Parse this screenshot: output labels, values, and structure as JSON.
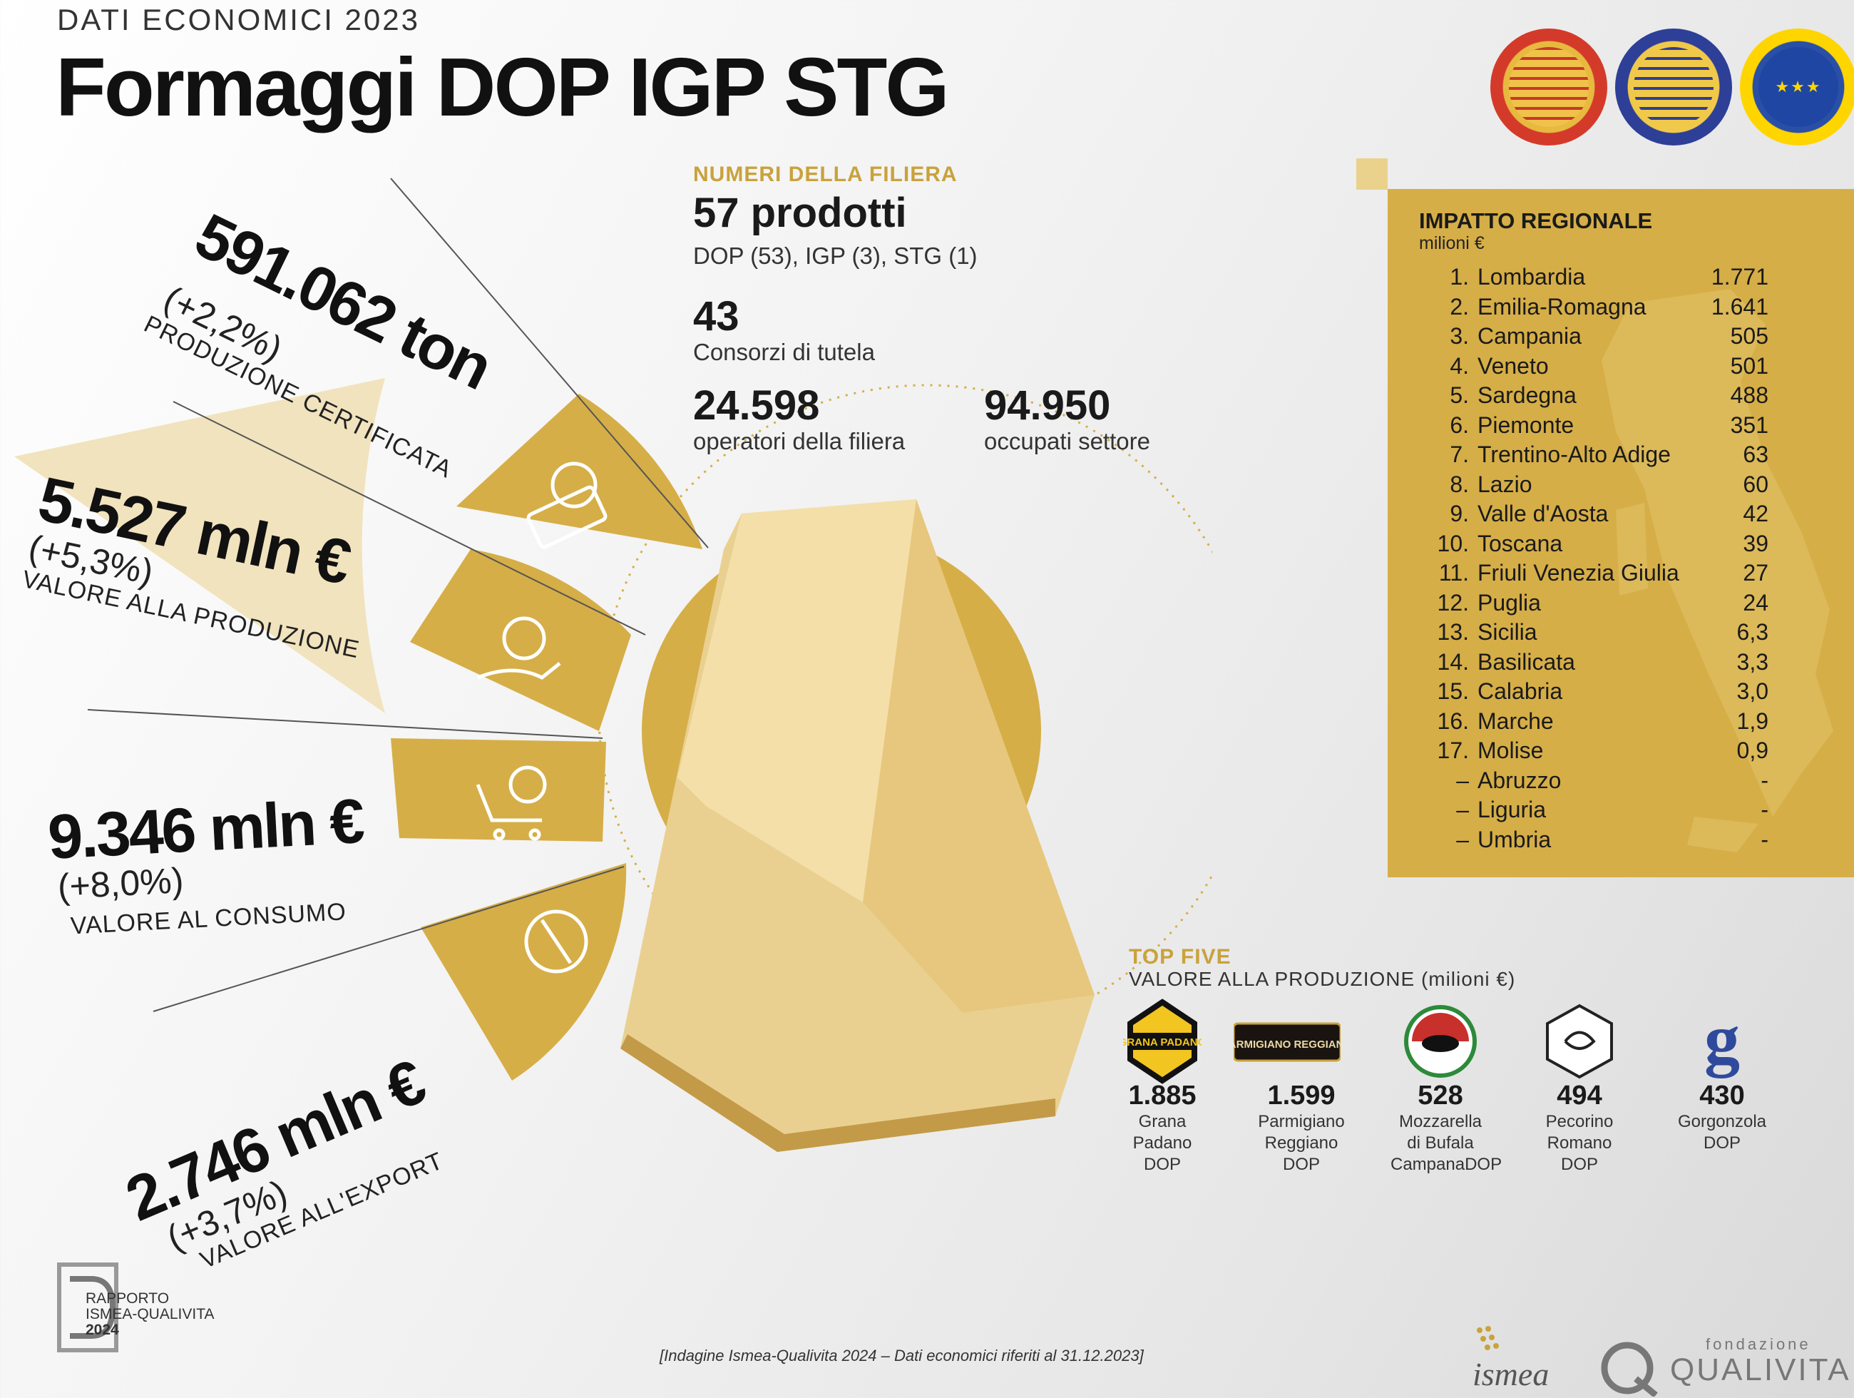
{
  "header": {
    "kicker": "DATI ECONOMICI 2023",
    "title": "Formaggi DOP IGP STG"
  },
  "seals": [
    {
      "name": "Denominazione d'Origine Protetta",
      "icon": "dop-seal"
    },
    {
      "name": "Indicazione Geografica Protetta",
      "icon": "igp-seal"
    },
    {
      "name": "Specialità Tradizionale Garantita",
      "icon": "stg-seal"
    }
  ],
  "fan": {
    "produzione_certificata": {
      "value": "591.062 ton",
      "change": "(+2,2%)",
      "label": "PRODUZIONE CERTIFICATA",
      "icon": "scale-icon"
    },
    "valore_produzione": {
      "value": "5.527 mln €",
      "change": "(+5,3%)",
      "label": "VALORE ALLA PRODUZIONE",
      "icon": "hand-coin-icon"
    },
    "valore_consumo": {
      "value": "9.346 mln €",
      "change": "(+8,0%)",
      "label": "VALORE AL CONSUMO",
      "icon": "cart-coin-icon"
    },
    "valore_export": {
      "value": "2.746 mln €",
      "change": "(+3,7%)",
      "label": "VALORE ALL'EXPORT",
      "icon": "globe-plane-icon"
    }
  },
  "filiera": {
    "section_label": "NUMERI DELLA FILIERA",
    "prodotti": "57 prodotti",
    "prodotti_detail": "DOP (53), IGP (3), STG (1)",
    "consorzi_value": "43",
    "consorzi_label": "Consorzi di tutela",
    "operatori_value": "24.598",
    "operatori_label": "operatori della filiera",
    "occupati_value": "94.950",
    "occupati_label": "occupati settore"
  },
  "regional": {
    "title": "IMPATTO REGIONALE",
    "subtitle": "milioni €",
    "rows": [
      {
        "rank": "1.",
        "name": "Lombardia",
        "value": "1.771"
      },
      {
        "rank": "2.",
        "name": "Emilia-Romagna",
        "value": "1.641"
      },
      {
        "rank": "3.",
        "name": "Campania",
        "value": "505"
      },
      {
        "rank": "4.",
        "name": "Veneto",
        "value": "501"
      },
      {
        "rank": "5.",
        "name": "Sardegna",
        "value": "488"
      },
      {
        "rank": "6.",
        "name": "Piemonte",
        "value": "351"
      },
      {
        "rank": "7.",
        "name": "Trentino-Alto Adige",
        "value": "63"
      },
      {
        "rank": "8.",
        "name": "Lazio",
        "value": "60"
      },
      {
        "rank": "9.",
        "name": "Valle d'Aosta",
        "value": "42"
      },
      {
        "rank": "10.",
        "name": "Toscana",
        "value": "39"
      },
      {
        "rank": "11.",
        "name": "Friuli Venezia Giulia",
        "value": "27"
      },
      {
        "rank": "12.",
        "name": "Puglia",
        "value": "24"
      },
      {
        "rank": "13.",
        "name": "Sicilia",
        "value": "6,3"
      },
      {
        "rank": "14.",
        "name": "Basilicata",
        "value": "3,3"
      },
      {
        "rank": "15.",
        "name": "Calabria",
        "value": "3,0"
      },
      {
        "rank": "16.",
        "name": "Marche",
        "value": "1,9"
      },
      {
        "rank": "17.",
        "name": "Molise",
        "value": "0,9"
      },
      {
        "rank": "–",
        "name": "Abruzzo",
        "value": "-"
      },
      {
        "rank": "–",
        "name": "Liguria",
        "value": "-"
      },
      {
        "rank": "–",
        "name": "Umbria",
        "value": "-"
      }
    ]
  },
  "top_five": {
    "title": "TOP FIVE",
    "subtitle": "VALORE ALLA PRODUZIONE (milioni €)",
    "items": [
      {
        "value": "1.885",
        "name": "Grana Padano DOP",
        "logo_text": "GRANA PADANO",
        "icon": "grana-padano-logo"
      },
      {
        "value": "1.599",
        "name": "Parmigiano Reggiano DOP",
        "logo_text": "PARMIGIANO REGGIANO",
        "icon": "parmigiano-reggiano-logo"
      },
      {
        "value": "528",
        "name": "Mozzarella di Bufala CampanaDOP",
        "logo_text": "",
        "icon": "mozzarella-bufala-logo"
      },
      {
        "value": "494",
        "name": "Pecorino Romano DOP",
        "logo_text": "",
        "icon": "pecorino-romano-logo"
      },
      {
        "value": "430",
        "name": "Gorgonzola DOP",
        "logo_text": "g",
        "icon": "gorgonzola-logo"
      }
    ]
  },
  "footer": {
    "report_line1": "RAPPORTO",
    "report_line2": "ISMEA-QUALIVITA",
    "report_year": "2024",
    "note": "[Indagine Ismea-Qualivita 2024 – Dati economici riferiti al 31.12.2023]",
    "ismea": "ismea",
    "qualivita_small": "fondazione",
    "qualivita": "QUALIVITA"
  },
  "colors": {
    "gold": "#d6ae47",
    "light_gold": "#ead28c",
    "cream": "#f1e3bd",
    "text": "#1a1a1a"
  }
}
